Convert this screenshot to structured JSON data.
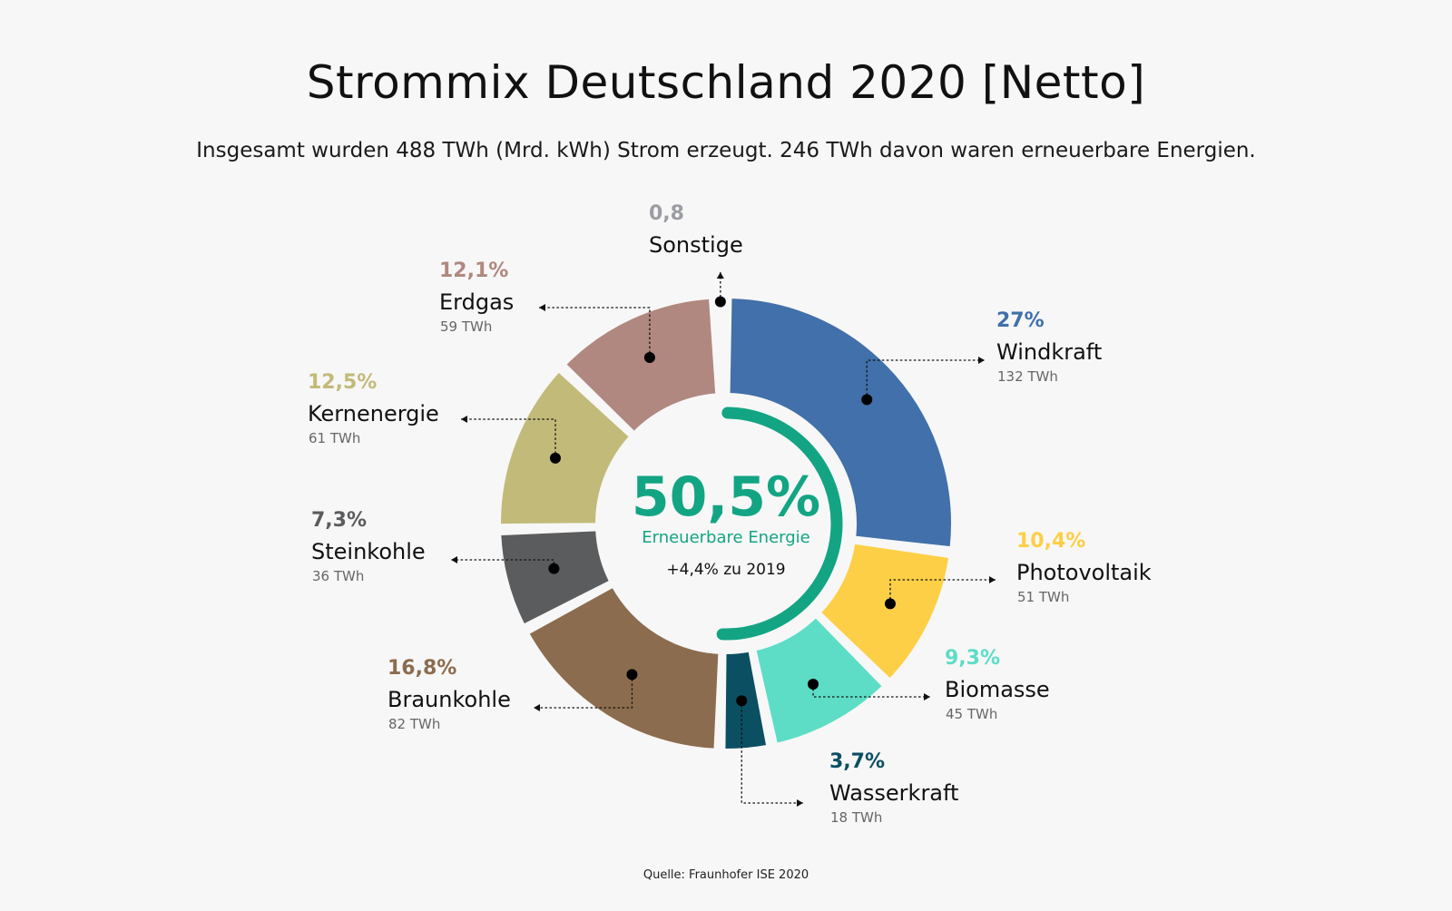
{
  "title": "Strommix Deutschland 2020 [Netto]",
  "subtitle": "Insgesamt wurden 488 TWh (Mrd. kWh) Strom erzeugt. 246 TWh davon waren erneuerbare Energien.",
  "source": "Quelle: Fraunhofer ISE 2020",
  "center": {
    "value": "50,5%",
    "label": "Erneuerbare Energie",
    "change": "+4,4% zu 2019",
    "renewable_share": 50.5,
    "color": "#13a583"
  },
  "chart_data": {
    "type": "donut",
    "title": "Strommix Deutschland 2020 [Netto]",
    "unit": "TWh",
    "total": 488,
    "series": [
      {
        "name": "Windkraft",
        "percent": 27,
        "percent_label": "27%",
        "twh": 132,
        "twh_label": "132 TWh",
        "color": "#4170aa"
      },
      {
        "name": "Photovoltaik",
        "percent": 10.4,
        "percent_label": "10,4%",
        "twh": 51,
        "twh_label": "51 TWh",
        "color": "#fdcf46"
      },
      {
        "name": "Biomasse",
        "percent": 9.3,
        "percent_label": "9,3%",
        "twh": 45,
        "twh_label": "45 TWh",
        "color": "#5dddc6"
      },
      {
        "name": "Wasserkraft",
        "percent": 3.7,
        "percent_label": "3,7%",
        "twh": 18,
        "twh_label": "18 TWh",
        "color": "#0b4f62"
      },
      {
        "name": "Braunkohle",
        "percent": 16.8,
        "percent_label": "16,8%",
        "twh": 82,
        "twh_label": "82 TWh",
        "color": "#8c6c4e"
      },
      {
        "name": "Steinkohle",
        "percent": 7.3,
        "percent_label": "7,3%",
        "twh": 36,
        "twh_label": "36 TWh",
        "color": "#5b5c5e"
      },
      {
        "name": "Kernenergie",
        "percent": 12.5,
        "percent_label": "12,5%",
        "twh": 61,
        "twh_label": "61 TWh",
        "color": "#c2ba78"
      },
      {
        "name": "Erdgas",
        "percent": 12.1,
        "percent_label": "12,1%",
        "twh": 59,
        "twh_label": "59 TWh",
        "color": "#b0887f"
      },
      {
        "name": "Sonstige",
        "percent": 0.8,
        "percent_label": "0,8",
        "twh_label": "",
        "color": "#9b9da2"
      }
    ]
  }
}
